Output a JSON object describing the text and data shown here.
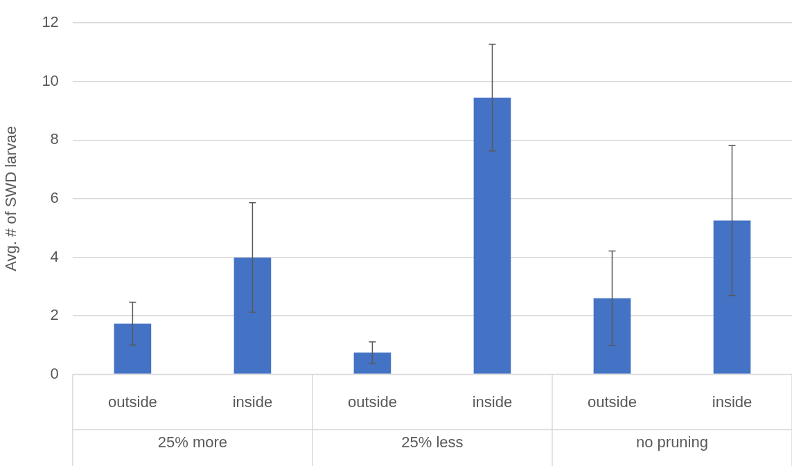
{
  "chart_data": {
    "type": "bar",
    "ylabel": "Avg. # of SWD larvae",
    "categories": [
      "outside",
      "inside",
      "outside",
      "inside",
      "outside",
      "inside"
    ],
    "values": [
      1.73,
      3.99,
      0.74,
      9.45,
      2.6,
      5.25
    ],
    "errors": [
      0.73,
      1.87,
      0.37,
      1.82,
      1.61,
      2.56
    ],
    "color": "#4472c4",
    "annotations": [
      "25% more",
      "25% less",
      "no pruning"
    ],
    "ylim": [
      0,
      12
    ],
    "yticks": [
      0,
      2,
      4,
      6,
      8,
      10,
      12
    ],
    "grid": "y",
    "legend": false
  }
}
